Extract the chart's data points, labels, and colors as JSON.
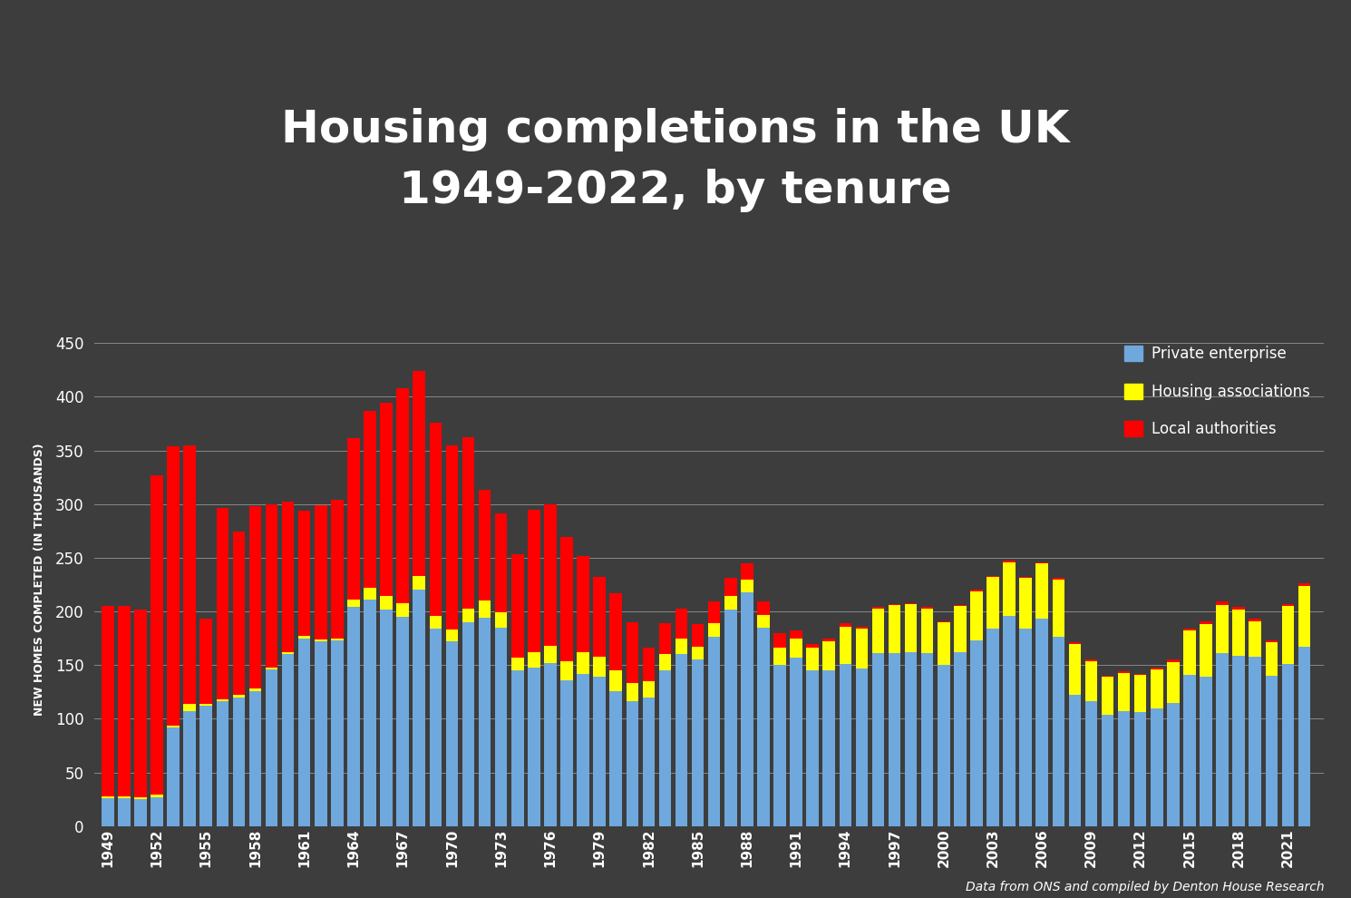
{
  "title": "Housing completions in the UK\n1949-2022, by tenure",
  "ylabel": "NEW HOMES COMPLETED (IN THOUSANDS)",
  "source": "Data from ONS and compiled by Denton House Research",
  "background_color": "#3d3d3d",
  "text_color": "#ffffff",
  "ylim": [
    0,
    460
  ],
  "yticks": [
    0,
    50,
    100,
    150,
    200,
    250,
    300,
    350,
    400,
    450
  ],
  "years": [
    1949,
    1950,
    1951,
    1952,
    1953,
    1954,
    1955,
    1956,
    1957,
    1958,
    1959,
    1960,
    1961,
    1962,
    1963,
    1964,
    1965,
    1966,
    1967,
    1968,
    1969,
    1970,
    1971,
    1972,
    1973,
    1974,
    1975,
    1976,
    1977,
    1978,
    1979,
    1980,
    1981,
    1982,
    1983,
    1984,
    1985,
    1986,
    1987,
    1988,
    1989,
    1990,
    1991,
    1992,
    1993,
    1994,
    1995,
    1996,
    1997,
    1998,
    1999,
    2000,
    2001,
    2002,
    2003,
    2004,
    2005,
    2006,
    2007,
    2008,
    2009,
    2010,
    2011,
    2012,
    2013,
    2014,
    2015,
    2016,
    2017,
    2018,
    2019,
    2020,
    2021,
    2022
  ],
  "private": [
    26,
    26,
    25,
    27,
    92,
    107,
    112,
    116,
    120,
    126,
    146,
    160,
    175,
    172,
    173,
    204,
    211,
    202,
    195,
    220,
    184,
    172,
    190,
    194,
    185,
    145,
    148,
    152,
    136,
    142,
    139,
    126,
    116,
    120,
    145,
    160,
    155,
    176,
    202,
    218,
    185,
    150,
    157,
    145,
    145,
    151,
    147,
    161,
    161,
    162,
    161,
    150,
    162,
    173,
    184,
    196,
    184,
    193,
    176,
    122,
    116,
    104,
    107,
    106,
    110,
    115,
    141,
    139,
    161,
    159,
    158,
    140,
    151,
    167
  ],
  "housing_assoc": [
    2,
    2,
    2,
    2,
    2,
    7,
    2,
    2,
    2,
    2,
    2,
    2,
    2,
    2,
    2,
    7,
    11,
    12,
    13,
    13,
    12,
    11,
    13,
    16,
    14,
    12,
    14,
    16,
    18,
    20,
    19,
    19,
    17,
    15,
    15,
    15,
    12,
    13,
    12,
    12,
    12,
    16,
    18,
    21,
    27,
    35,
    37,
    42,
    45,
    45,
    42,
    40,
    43,
    46,
    48,
    50,
    47,
    52,
    54,
    48,
    38,
    35,
    36,
    35,
    36,
    38,
    41,
    49,
    45,
    43,
    33,
    31,
    54,
    57
  ],
  "local_auth": [
    177,
    177,
    175,
    298,
    260,
    241,
    79,
    178,
    152,
    170,
    152,
    140,
    117,
    125,
    129,
    150,
    165,
    180,
    200,
    191,
    180,
    172,
    159,
    103,
    92,
    96,
    133,
    132,
    115,
    90,
    74,
    72,
    57,
    31,
    29,
    28,
    21,
    20,
    17,
    15,
    12,
    14,
    7,
    4,
    3,
    3,
    2,
    1,
    1,
    1,
    1,
    1,
    1,
    1,
    1,
    1,
    1,
    1,
    1,
    1,
    1,
    1,
    1,
    1,
    2,
    2,
    2,
    3,
    3,
    2,
    2,
    2,
    2,
    2
  ],
  "private_color": "#6fa8dc",
  "housing_assoc_color": "#ffff00",
  "local_auth_color": "#ff0000",
  "legend_labels": [
    "Private enterprise",
    "Housing associations",
    "Local authorities"
  ],
  "bar_width": 0.75
}
